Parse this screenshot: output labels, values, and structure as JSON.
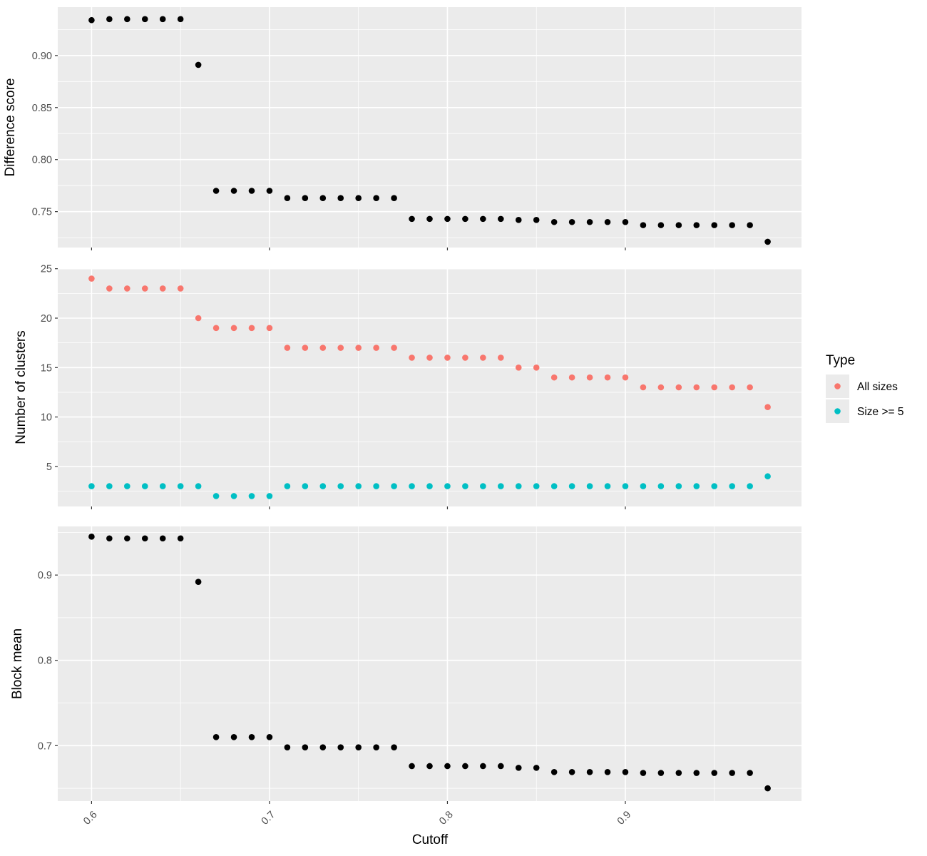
{
  "colors": {
    "panel": "#EBEBEB",
    "black_points": "#000000",
    "all_sizes": "#F8766D",
    "size_ge_5": "#00BFC4"
  },
  "chart_data": {
    "type": "scatter",
    "xlabel": "Cutoff",
    "x_ticks": [
      "0.6",
      "0.7",
      "0.8",
      "0.9"
    ],
    "x_tick_values": [
      0.6,
      0.7,
      0.8,
      0.9
    ],
    "xlim": [
      0.581,
      0.999
    ],
    "x": [
      0.6,
      0.61,
      0.62,
      0.63,
      0.64,
      0.65,
      0.66,
      0.67,
      0.68,
      0.69,
      0.7,
      0.71,
      0.72,
      0.73,
      0.74,
      0.75,
      0.76,
      0.77,
      0.78,
      0.79,
      0.8,
      0.81,
      0.82,
      0.83,
      0.84,
      0.85,
      0.86,
      0.87,
      0.88,
      0.89,
      0.9,
      0.91,
      0.92,
      0.93,
      0.94,
      0.95,
      0.96,
      0.97,
      0.98
    ],
    "legend": {
      "title": "Type",
      "position": "right",
      "entries": [
        "All sizes",
        "Size >= 5"
      ]
    },
    "panels": [
      {
        "ylabel": "Difference score",
        "ylim": [
          0.7155,
          0.9465
        ],
        "y_ticks": [
          "0.75",
          "0.80",
          "0.85",
          "0.90"
        ],
        "y_tick_values": [
          0.75,
          0.8,
          0.85,
          0.9
        ],
        "y_minor": [
          0.725,
          0.775,
          0.825,
          0.875,
          0.925
        ],
        "series": [
          {
            "color": "#000000",
            "values": [
              0.934,
              0.935,
              0.935,
              0.935,
              0.935,
              0.935,
              0.891,
              0.77,
              0.77,
              0.77,
              0.77,
              0.763,
              0.763,
              0.763,
              0.763,
              0.763,
              0.763,
              0.763,
              0.743,
              0.743,
              0.743,
              0.743,
              0.743,
              0.743,
              0.742,
              0.742,
              0.74,
              0.74,
              0.74,
              0.74,
              0.74,
              0.737,
              0.737,
              0.737,
              0.737,
              0.737,
              0.737,
              0.737,
              0.721
            ]
          }
        ]
      },
      {
        "ylabel": "Number of clusters",
        "ylim": [
          0.95,
          25.05
        ],
        "y_ticks": [
          "5",
          "10",
          "15",
          "20",
          "25"
        ],
        "y_tick_values": [
          5,
          10,
          15,
          20,
          25
        ],
        "y_minor": [
          2.5,
          7.5,
          12.5,
          17.5,
          22.5
        ],
        "series": [
          {
            "name": "All sizes",
            "color": "#F8766D",
            "values": [
              24,
              23,
              23,
              23,
              23,
              23,
              20,
              19,
              19,
              19,
              19,
              17,
              17,
              17,
              17,
              17,
              17,
              17,
              16,
              16,
              16,
              16,
              16,
              16,
              15,
              15,
              14,
              14,
              14,
              14,
              14,
              13,
              13,
              13,
              13,
              13,
              13,
              13,
              11
            ]
          },
          {
            "name": "Size >= 5",
            "color": "#00BFC4",
            "values": [
              3,
              3,
              3,
              3,
              3,
              3,
              3,
              2,
              2,
              2,
              2,
              3,
              3,
              3,
              3,
              3,
              3,
              3,
              3,
              3,
              3,
              3,
              3,
              3,
              3,
              3,
              3,
              3,
              3,
              3,
              3,
              3,
              3,
              3,
              3,
              3,
              3,
              3,
              4
            ]
          }
        ]
      },
      {
        "ylabel": "Block mean",
        "ylim": [
          0.635,
          0.957
        ],
        "y_ticks": [
          "0.7",
          "0.8",
          "0.9"
        ],
        "y_tick_values": [
          0.7,
          0.8,
          0.9
        ],
        "y_minor": [
          0.65,
          0.75,
          0.85,
          0.95
        ],
        "series": [
          {
            "color": "#000000",
            "values": [
              0.945,
              0.943,
              0.943,
              0.943,
              0.943,
              0.943,
              0.892,
              0.71,
              0.71,
              0.71,
              0.71,
              0.698,
              0.698,
              0.698,
              0.698,
              0.698,
              0.698,
              0.698,
              0.676,
              0.676,
              0.676,
              0.676,
              0.676,
              0.676,
              0.674,
              0.674,
              0.669,
              0.669,
              0.669,
              0.669,
              0.669,
              0.668,
              0.668,
              0.668,
              0.668,
              0.668,
              0.668,
              0.668,
              0.65
            ]
          }
        ]
      }
    ]
  }
}
